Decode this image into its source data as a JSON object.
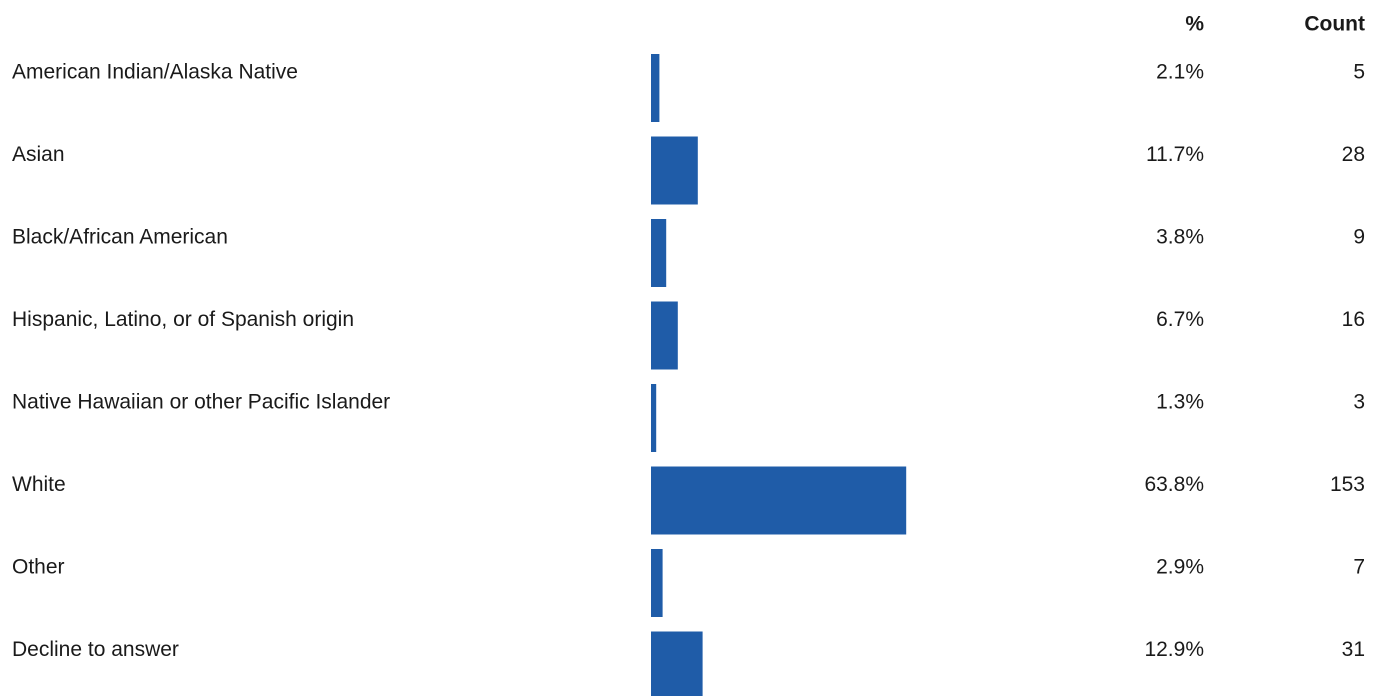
{
  "chart_data": {
    "type": "bar",
    "orientation": "horizontal",
    "color": "#1f5ca8",
    "columns": [
      "%",
      "Count"
    ],
    "categories": [
      "American Indian/Alaska Native",
      "Asian",
      "Black/African American",
      "Hispanic, Latino, or of Spanish origin",
      "Native Hawaiian or other Pacific Islander",
      "White",
      "Other",
      "Decline to answer"
    ],
    "values": [
      2.1,
      11.7,
      3.8,
      6.7,
      1.3,
      63.8,
      2.9,
      12.9
    ],
    "value_labels": [
      "2.1%",
      "11.7%",
      "3.8%",
      "6.7%",
      "1.3%",
      "63.8%",
      "2.9%",
      "12.9%"
    ],
    "counts": [
      5,
      28,
      9,
      16,
      3,
      153,
      7,
      31
    ]
  }
}
